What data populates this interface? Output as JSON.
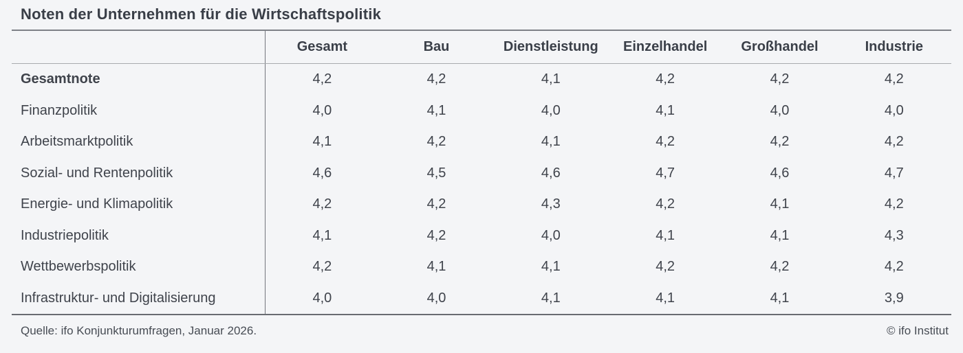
{
  "title": "Noten der Unternehmen für die Wirtschaftspolitik",
  "chart_data": {
    "type": "table",
    "columns": [
      "Gesamt",
      "Bau",
      "Dienstleistung",
      "Einzelhandel",
      "Großhandel",
      "Industrie"
    ],
    "rows": [
      {
        "label": "Gesamtnote",
        "emphasis": true,
        "values": [
          "4,2",
          "4,2",
          "4,1",
          "4,2",
          "4,2",
          "4,2"
        ]
      },
      {
        "label": "Finanzpolitik",
        "emphasis": false,
        "values": [
          "4,0",
          "4,1",
          "4,0",
          "4,1",
          "4,0",
          "4,0"
        ]
      },
      {
        "label": "Arbeitsmarktpolitik",
        "emphasis": false,
        "values": [
          "4,1",
          "4,2",
          "4,1",
          "4,2",
          "4,2",
          "4,2"
        ]
      },
      {
        "label": "Sozial- und Rentenpolitik",
        "emphasis": false,
        "values": [
          "4,6",
          "4,5",
          "4,6",
          "4,7",
          "4,6",
          "4,7"
        ]
      },
      {
        "label": "Energie- und Klimapolitik",
        "emphasis": false,
        "values": [
          "4,2",
          "4,2",
          "4,3",
          "4,2",
          "4,1",
          "4,2"
        ]
      },
      {
        "label": "Industriepolitik",
        "emphasis": false,
        "values": [
          "4,1",
          "4,2",
          "4,0",
          "4,1",
          "4,1",
          "4,3"
        ]
      },
      {
        "label": "Wettbewerbspolitik",
        "emphasis": false,
        "values": [
          "4,2",
          "4,1",
          "4,1",
          "4,2",
          "4,2",
          "4,2"
        ]
      },
      {
        "label": "Infrastruktur- und Digitalisierung",
        "emphasis": false,
        "values": [
          "4,0",
          "4,0",
          "4,1",
          "4,1",
          "4,1",
          "3,9"
        ]
      }
    ],
    "title": "Noten der Unternehmen für die Wirtschaftspolitik"
  },
  "footer": {
    "source": "Quelle: ifo Konjunkturumfragen, Januar 2026.",
    "copyright": "© ifo Institut"
  },
  "colors": {
    "background": "#f4f5f7",
    "text": "#3f434b",
    "rule_dark": "#7d8086",
    "rule_bottom": "#686b71",
    "rule_light": "#a8aaae",
    "divider": "#73767c"
  }
}
